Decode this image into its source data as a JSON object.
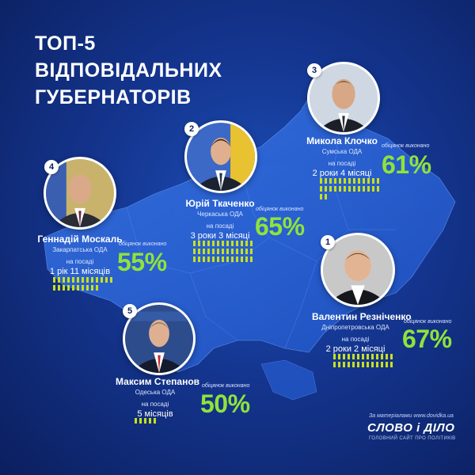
{
  "title": {
    "line1": "ТОП-5",
    "line2": "ВІДПОВІДАЛЬНИХ",
    "line3": "ГУБЕРНАТОРІВ"
  },
  "promises_label": "обіцянок виконано",
  "governors": [
    {
      "rank": "1",
      "name": "Валентин Резніченко",
      "region": "Дніпропетровська ОДА",
      "post_label": "на посаді",
      "tenure": "2 роки 2 місяці",
      "percent_text": "67%",
      "percent": 67
    },
    {
      "rank": "2",
      "name": "Юрій Ткаченко",
      "region": "Черкаська ОДА",
      "post_label": "на посаді",
      "tenure": "3 роки 3 місяці",
      "percent_text": "65%",
      "percent": 65
    },
    {
      "rank": "3",
      "name": "Микола Клочко",
      "region": "Сумська ОДА",
      "post_label": "на посаді",
      "tenure": "2 роки 4 місяці",
      "percent_text": "61%",
      "percent": 61
    },
    {
      "rank": "4",
      "name": "Геннадій Москаль",
      "region": "Закарпатська ОДА",
      "post_label": "на посаді",
      "tenure": "1 рік 11 місяців",
      "percent_text": "55%",
      "percent": 55
    },
    {
      "rank": "5",
      "name": "Максим Степанов",
      "region": "Одеська ОДА",
      "post_label": "на посаді",
      "tenure": "5 місяців",
      "percent_text": "50%",
      "percent": 50
    }
  ],
  "credit": {
    "note": "За матеріалами www.dovidka.ua",
    "logo": "СЛОВО і ДІЛО",
    "tagline": "ГОЛОВНИЙ САЙТ ПРО ПОЛІТИКІВ"
  },
  "colors": {
    "background": "#14358f",
    "map": "#2a63d6",
    "accent": "#8fe33a",
    "bars": "#c8e01a",
    "text": "#ffffff"
  }
}
